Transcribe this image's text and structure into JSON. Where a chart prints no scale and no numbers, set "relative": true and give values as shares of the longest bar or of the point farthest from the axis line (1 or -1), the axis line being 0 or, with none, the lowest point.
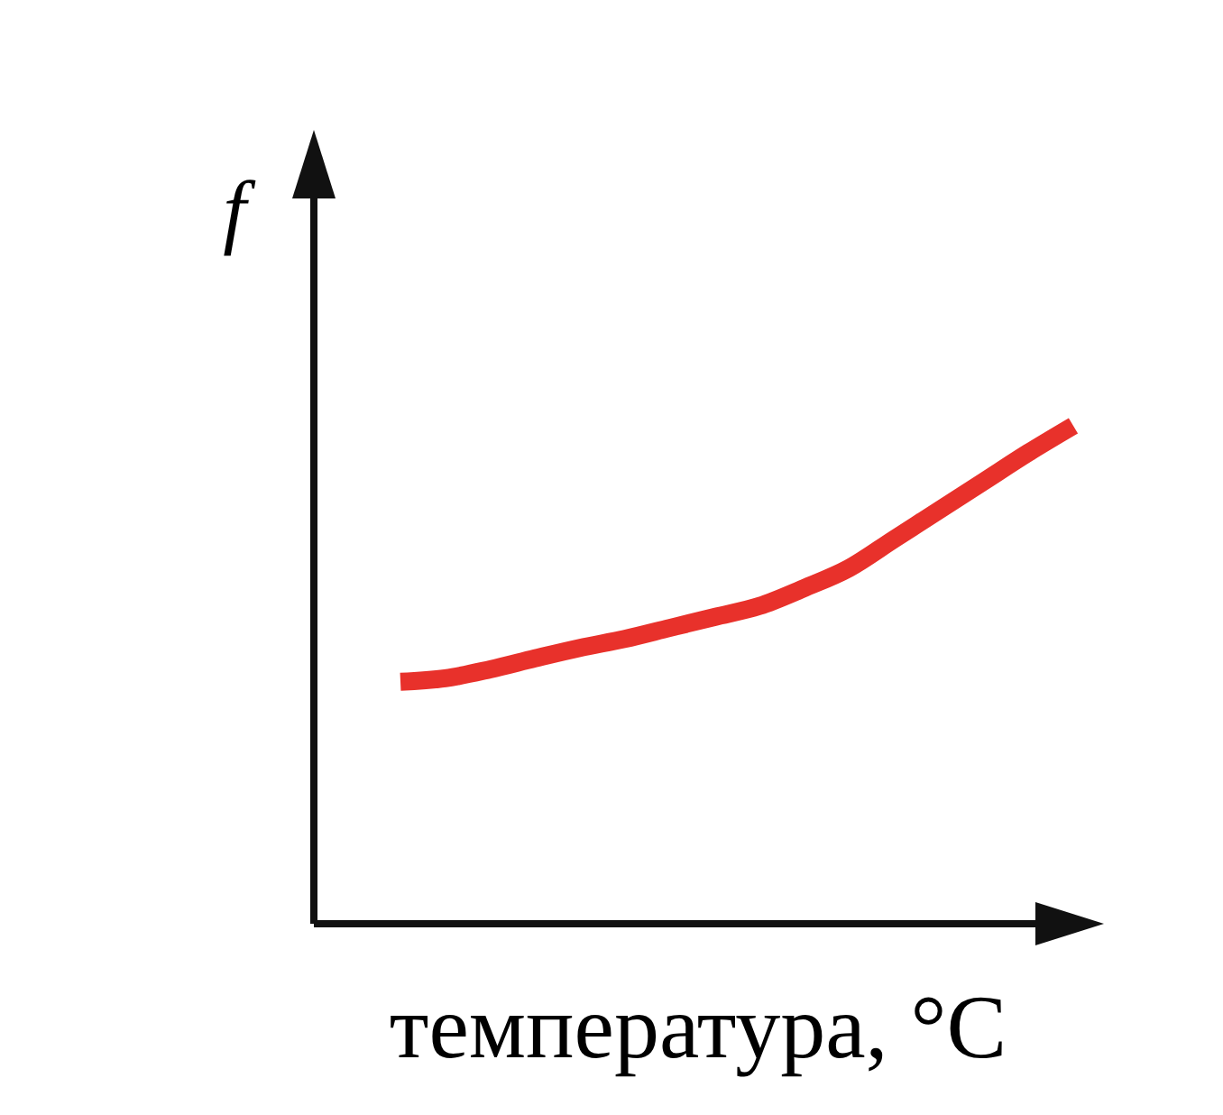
{
  "chart_data": {
    "type": "line",
    "relative": true,
    "ylabel": "f",
    "xlabel": "температура, °C",
    "categories": [
      null,
      null,
      null,
      null,
      null,
      null,
      null,
      null,
      null,
      null,
      null,
      null,
      null,
      null,
      null,
      null
    ],
    "series": [
      {
        "color": "#e8312b",
        "values": [
          0.486,
          0.493,
          0.511,
          0.533,
          0.554,
          0.572,
          0.594,
          0.616,
          0.638,
          0.674,
          0.714,
          0.772,
          0.83,
          0.888,
          0.946,
          1
        ]
      }
    ]
  }
}
